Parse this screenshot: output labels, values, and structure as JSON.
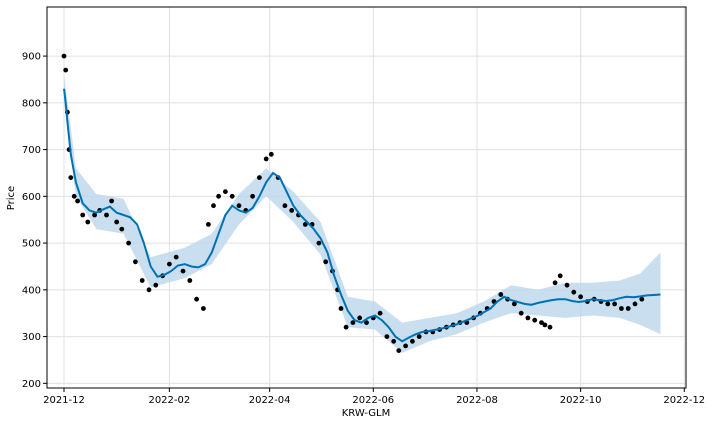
{
  "chart_data": {
    "type": "line",
    "title": "",
    "xlabel": "KRW-GLM",
    "ylabel": "Price",
    "ylim": [
      190,
      1005
    ],
    "xlim": [
      "2021-11-21",
      "2022-12-02"
    ],
    "grid": true,
    "yticks": [
      200,
      300,
      400,
      500,
      600,
      700,
      800,
      900
    ],
    "xticks": [
      "2021-12",
      "2022-02",
      "2022-04",
      "2022-06",
      "2022-08",
      "2022-10",
      "2022-12"
    ],
    "colors": {
      "forecast": "#0072b2",
      "interval": "#bcd7ec",
      "observed": "#000000",
      "grid": "#e0e0e0"
    },
    "series": [
      {
        "kind": "observed",
        "x": [
          "2021-12-01",
          "2021-12-02",
          "2021-12-03",
          "2021-12-04",
          "2021-12-05",
          "2021-12-07",
          "2021-12-09",
          "2021-12-12",
          "2021-12-15",
          "2021-12-19",
          "2021-12-22",
          "2021-12-26",
          "2021-12-29",
          "2022-01-01",
          "2022-01-04",
          "2022-01-08",
          "2022-01-12",
          "2022-01-16",
          "2022-01-20",
          "2022-01-24",
          "2022-01-28",
          "2022-02-01",
          "2022-02-05",
          "2022-02-09",
          "2022-02-13",
          "2022-02-17",
          "2022-02-21",
          "2022-02-24",
          "2022-02-27",
          "2022-03-02",
          "2022-03-06",
          "2022-03-10",
          "2022-03-14",
          "2022-03-18",
          "2022-03-22",
          "2022-03-26",
          "2022-03-30",
          "2022-04-02",
          "2022-04-06",
          "2022-04-10",
          "2022-04-14",
          "2022-04-18",
          "2022-04-22",
          "2022-04-26",
          "2022-04-30",
          "2022-05-04",
          "2022-05-08",
          "2022-05-11",
          "2022-05-13",
          "2022-05-16",
          "2022-05-20",
          "2022-05-24",
          "2022-05-28",
          "2022-06-01",
          "2022-06-05",
          "2022-06-09",
          "2022-06-13",
          "2022-06-16",
          "2022-06-20",
          "2022-06-24",
          "2022-06-28",
          "2022-07-02",
          "2022-07-06",
          "2022-07-10",
          "2022-07-14",
          "2022-07-18",
          "2022-07-22",
          "2022-07-26",
          "2022-07-30",
          "2022-08-03",
          "2022-08-07",
          "2022-08-11",
          "2022-08-15",
          "2022-08-19",
          "2022-08-23",
          "2022-08-27",
          "2022-08-31",
          "2022-09-04",
          "2022-09-08",
          "2022-09-10",
          "2022-09-13",
          "2022-09-16",
          "2022-09-19",
          "2022-09-23",
          "2022-09-27",
          "2022-10-01",
          "2022-10-05",
          "2022-10-09",
          "2022-10-13",
          "2022-10-17",
          "2022-10-21",
          "2022-10-25",
          "2022-10-29",
          "2022-11-02",
          "2022-11-06"
        ],
        "y": [
          900,
          870,
          780,
          700,
          640,
          600,
          590,
          560,
          545,
          560,
          570,
          560,
          590,
          545,
          530,
          500,
          460,
          420,
          400,
          410,
          430,
          455,
          470,
          440,
          420,
          380,
          360,
          540,
          580,
          600,
          610,
          600,
          580,
          570,
          600,
          640,
          680,
          690,
          640,
          580,
          570,
          560,
          540,
          540,
          500,
          460,
          440,
          400,
          360,
          320,
          330,
          340,
          330,
          340,
          350,
          300,
          290,
          270,
          280,
          290,
          300,
          310,
          310,
          315,
          320,
          325,
          330,
          330,
          340,
          350,
          360,
          375,
          390,
          380,
          370,
          350,
          340,
          335,
          330,
          325,
          320,
          415,
          430,
          410,
          395,
          385,
          375,
          380,
          375,
          370,
          370,
          360,
          360,
          370,
          380
        ]
      },
      {
        "kind": "forecast",
        "x": [
          "2021-12-01",
          "2021-12-02",
          "2021-12-03",
          "2021-12-05",
          "2021-12-08",
          "2021-12-12",
          "2021-12-16",
          "2021-12-20",
          "2021-12-24",
          "2021-12-28",
          "2022-01-01",
          "2022-01-05",
          "2022-01-09",
          "2022-01-13",
          "2022-01-17",
          "2022-01-21",
          "2022-01-25",
          "2022-01-29",
          "2022-02-02",
          "2022-02-06",
          "2022-02-10",
          "2022-02-14",
          "2022-02-18",
          "2022-02-22",
          "2022-02-26",
          "2022-03-02",
          "2022-03-06",
          "2022-03-10",
          "2022-03-14",
          "2022-03-18",
          "2022-03-22",
          "2022-03-26",
          "2022-03-30",
          "2022-04-03",
          "2022-04-07",
          "2022-04-11",
          "2022-04-15",
          "2022-04-19",
          "2022-04-23",
          "2022-04-27",
          "2022-05-01",
          "2022-05-05",
          "2022-05-09",
          "2022-05-13",
          "2022-05-17",
          "2022-05-21",
          "2022-05-25",
          "2022-05-29",
          "2022-06-02",
          "2022-06-06",
          "2022-06-10",
          "2022-06-14",
          "2022-06-18",
          "2022-06-22",
          "2022-06-26",
          "2022-06-30",
          "2022-07-04",
          "2022-07-08",
          "2022-07-12",
          "2022-07-16",
          "2022-07-20",
          "2022-07-24",
          "2022-07-28",
          "2022-08-01",
          "2022-08-05",
          "2022-08-09",
          "2022-08-13",
          "2022-08-17",
          "2022-08-21",
          "2022-08-25",
          "2022-08-29",
          "2022-09-02",
          "2022-09-06",
          "2022-09-10",
          "2022-09-14",
          "2022-09-18",
          "2022-09-22",
          "2022-09-26",
          "2022-09-30",
          "2022-10-04",
          "2022-10-08",
          "2022-10-12",
          "2022-10-16",
          "2022-10-20",
          "2022-10-24",
          "2022-10-28",
          "2022-11-01",
          "2022-11-05",
          "2022-11-09",
          "2022-11-13",
          "2022-11-17"
        ],
        "y": [
          830,
          800,
          760,
          690,
          630,
          585,
          570,
          565,
          572,
          578,
          565,
          560,
          555,
          540,
          500,
          450,
          428,
          432,
          440,
          452,
          455,
          450,
          448,
          455,
          480,
          520,
          560,
          580,
          570,
          565,
          575,
          600,
          630,
          650,
          640,
          610,
          580,
          560,
          545,
          530,
          510,
          480,
          430,
          390,
          355,
          335,
          330,
          340,
          345,
          335,
          320,
          300,
          290,
          298,
          305,
          310,
          312,
          315,
          318,
          322,
          326,
          332,
          338,
          344,
          352,
          360,
          375,
          385,
          378,
          374,
          370,
          368,
          372,
          375,
          378,
          380,
          380,
          376,
          374,
          376,
          380,
          378,
          376,
          378,
          382,
          385,
          384,
          386,
          388,
          389,
          390
        ]
      },
      {
        "kind": "uncertainty-interval",
        "x": [
          "2021-12-01",
          "2021-12-08",
          "2021-12-20",
          "2022-01-05",
          "2022-01-21",
          "2022-02-10",
          "2022-02-26",
          "2022-03-14",
          "2022-03-30",
          "2022-04-15",
          "2022-05-01",
          "2022-05-17",
          "2022-06-02",
          "2022-06-18",
          "2022-07-04",
          "2022-07-20",
          "2022-08-05",
          "2022-08-21",
          "2022-09-06",
          "2022-09-22",
          "2022-10-08",
          "2022-10-24",
          "2022-11-05",
          "2022-11-17"
        ],
        "lower": [
          800,
          600,
          530,
          520,
          405,
          425,
          455,
          540,
          600,
          545,
          475,
          320,
          315,
          265,
          290,
          305,
          330,
          350,
          345,
          340,
          345,
          340,
          325,
          305
        ],
        "upper": [
          860,
          660,
          605,
          595,
          470,
          490,
          520,
          605,
          660,
          610,
          545,
          385,
          375,
          330,
          340,
          350,
          375,
          410,
          400,
          415,
          415,
          420,
          435,
          480
        ]
      }
    ]
  }
}
